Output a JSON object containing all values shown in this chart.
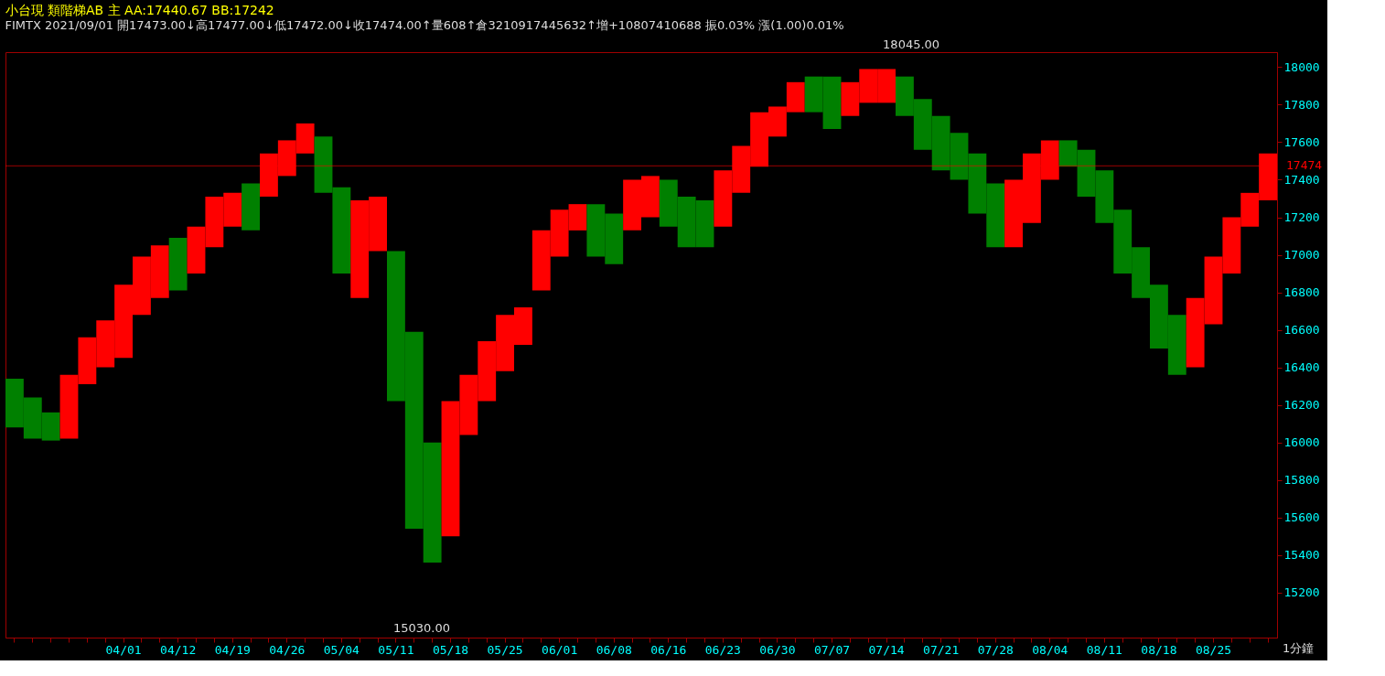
{
  "chart_data": {
    "type": "bar",
    "title": "小台現 類階梯AB  主 AA:17440.67 BB:17242",
    "subtitle": "FIMTX 2021/09/01 開17473.00↓高17477.00↓低17472.00↓收17474.00↑量608↑倉3210917445632↑增+10807410688 振0.03% 漲(1.00)0.01%",
    "categories": [
      null,
      null,
      null,
      null,
      null,
      null,
      "04/01",
      null,
      null,
      "04/12",
      null,
      null,
      "04/19",
      null,
      null,
      "04/26",
      null,
      null,
      "05/04",
      null,
      null,
      "05/11",
      null,
      null,
      "05/18",
      null,
      null,
      "05/25",
      null,
      null,
      "06/01",
      null,
      null,
      "06/08",
      null,
      null,
      "06/16",
      null,
      null,
      "06/23",
      null,
      null,
      "06/30",
      null,
      null,
      "07/07",
      null,
      null,
      "07/14",
      null,
      null,
      "07/21",
      null,
      null,
      "07/28",
      null,
      null,
      "08/04",
      null,
      null,
      "08/11",
      null,
      null,
      "08/18",
      null,
      null,
      "08/25",
      null,
      null,
      null
    ],
    "base": [
      16080,
      16020,
      16010,
      16020,
      16310,
      16400,
      16450,
      16680,
      16770,
      16810,
      16900,
      17040,
      17150,
      17130,
      17310,
      17420,
      17540,
      17330,
      16900,
      16770,
      17020,
      16220,
      15540,
      15360,
      15500,
      16040,
      16220,
      16380,
      16520,
      16810,
      16990,
      17130,
      16990,
      16950,
      17130,
      17200,
      17150,
      17040,
      17040,
      17150,
      17330,
      17470,
      17630,
      17760,
      17760,
      17670,
      17740,
      17810,
      17810,
      17740,
      17560,
      17450,
      17400,
      17220,
      17040,
      17040,
      17170,
      17400,
      17470,
      17310,
      17170,
      16900,
      16770,
      16500,
      16360,
      16400,
      16630,
      16900,
      17150,
      17290
    ],
    "values": [
      260,
      220,
      150,
      340,
      250,
      250,
      390,
      310,
      280,
      280,
      250,
      270,
      180,
      250,
      230,
      190,
      160,
      300,
      460,
      520,
      290,
      800,
      1050,
      640,
      720,
      320,
      320,
      300,
      200,
      320,
      250,
      140,
      280,
      270,
      270,
      220,
      250,
      270,
      250,
      300,
      250,
      290,
      160,
      160,
      190,
      280,
      180,
      180,
      180,
      210,
      270,
      290,
      250,
      320,
      340,
      360,
      370,
      210,
      140,
      250,
      280,
      340,
      270,
      340,
      320,
      370,
      360,
      300,
      180,
      250
    ],
    "colors": [
      "#008000",
      "#008000",
      "#008000",
      "#ff0000",
      "#ff0000",
      "#ff0000",
      "#ff0000",
      "#ff0000",
      "#ff0000",
      "#008000",
      "#ff0000",
      "#ff0000",
      "#ff0000",
      "#008000",
      "#ff0000",
      "#ff0000",
      "#ff0000",
      "#008000",
      "#008000",
      "#ff0000",
      "#ff0000",
      "#008000",
      "#008000",
      "#008000",
      "#ff0000",
      "#ff0000",
      "#ff0000",
      "#ff0000",
      "#ff0000",
      "#ff0000",
      "#ff0000",
      "#ff0000",
      "#008000",
      "#008000",
      "#ff0000",
      "#ff0000",
      "#008000",
      "#008000",
      "#008000",
      "#ff0000",
      "#ff0000",
      "#ff0000",
      "#ff0000",
      "#ff0000",
      "#008000",
      "#008000",
      "#ff0000",
      "#ff0000",
      "#ff0000",
      "#008000",
      "#008000",
      "#008000",
      "#008000",
      "#008000",
      "#008000",
      "#ff0000",
      "#ff0000",
      "#ff0000",
      "#008000",
      "#008000",
      "#008000",
      "#008000",
      "#008000",
      "#008000",
      "#008000",
      "#ff0000",
      "#ff0000",
      "#ff0000",
      "#ff0000",
      "#ff0000"
    ],
    "ylim": [
      14960,
      18080
    ],
    "yticks": [
      15200,
      15400,
      15600,
      15800,
      16000,
      16200,
      16400,
      16600,
      16800,
      17000,
      17200,
      17400,
      17600,
      17800,
      18000
    ],
    "ref_lines": [
      {
        "axis": "y",
        "value": 17474,
        "label": "17474",
        "color": "#ff0000"
      }
    ],
    "annotations": [
      "18045.00",
      "15030.00",
      "1分鐘"
    ],
    "grid": false
  }
}
